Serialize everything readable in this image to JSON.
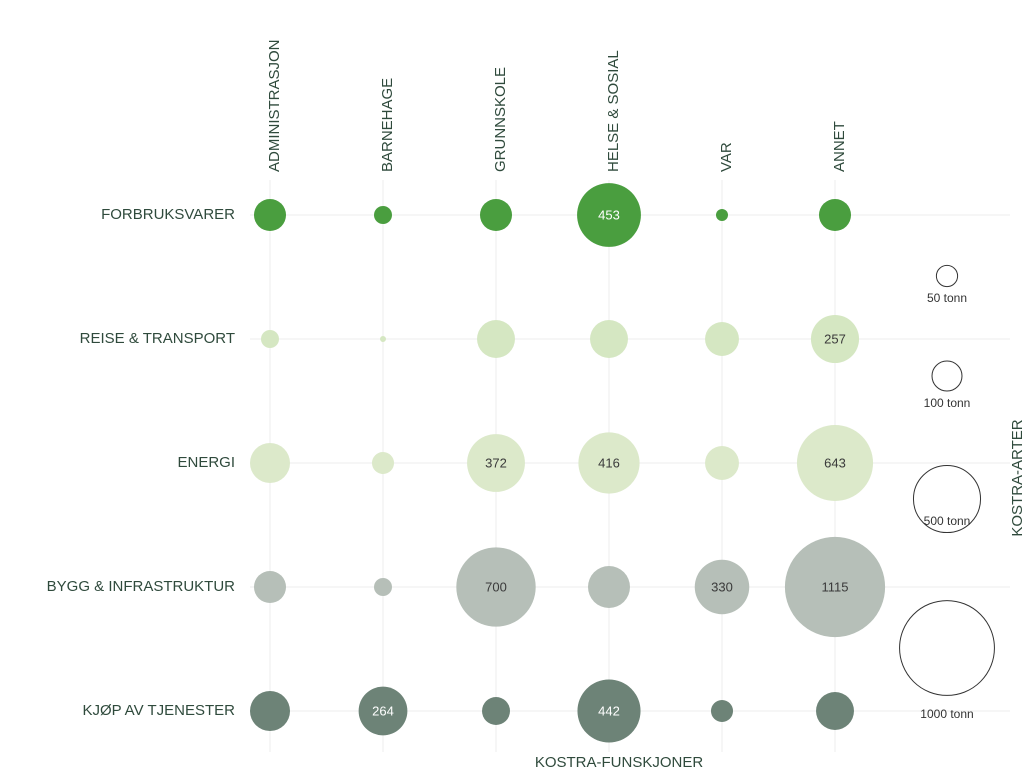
{
  "chart_data": {
    "type": "bubble",
    "x_label": "KOSTRA-FUNSKJONER",
    "y_label": "KOSTRA-ARTER",
    "categories": [
      "ADMINISTRASJON",
      "BARNEHAGE",
      "GRUNNSKOLE",
      "HELSE & SOSIAL",
      "VAR",
      "ANNET"
    ],
    "series": [
      {
        "name": "FORBRUKSVARER",
        "color": "#4a9e3f",
        "values": [
          114,
          36,
          114,
          453,
          16,
          114
        ],
        "value_labels": [
          null,
          null,
          null,
          "453",
          null,
          null
        ]
      },
      {
        "name": "REISE & TRANSPORT",
        "color": "#d5e7c2",
        "values": [
          36,
          4,
          160,
          160,
          128,
          257
        ],
        "value_labels": [
          null,
          null,
          null,
          null,
          null,
          "257"
        ]
      },
      {
        "name": "ENERGI",
        "color": "#dce9ca",
        "values": [
          178,
          54,
          372,
          416,
          128,
          643
        ],
        "value_labels": [
          null,
          null,
          "372",
          "416",
          null,
          "643"
        ]
      },
      {
        "name": "BYGG & INFRASTRUKTUR",
        "color": "#b6bfb8",
        "values": [
          114,
          36,
          700,
          196,
          330,
          1115
        ],
        "value_labels": [
          null,
          null,
          "700",
          null,
          "330",
          "1115"
        ]
      },
      {
        "name": "KJØP AV TJENESTER",
        "color": "#6d8377",
        "values": [
          178,
          264,
          87,
          442,
          54,
          160
        ],
        "value_labels": [
          null,
          "264",
          null,
          "442",
          null,
          null
        ]
      }
    ],
    "size_legend": [
      {
        "value": 50,
        "label": "50 tonn"
      },
      {
        "value": 100,
        "label": "100 tonn"
      },
      {
        "value": 500,
        "label": "500 tonn"
      },
      {
        "value": 1000,
        "label": "1000 tonn"
      }
    ],
    "grid": true
  }
}
